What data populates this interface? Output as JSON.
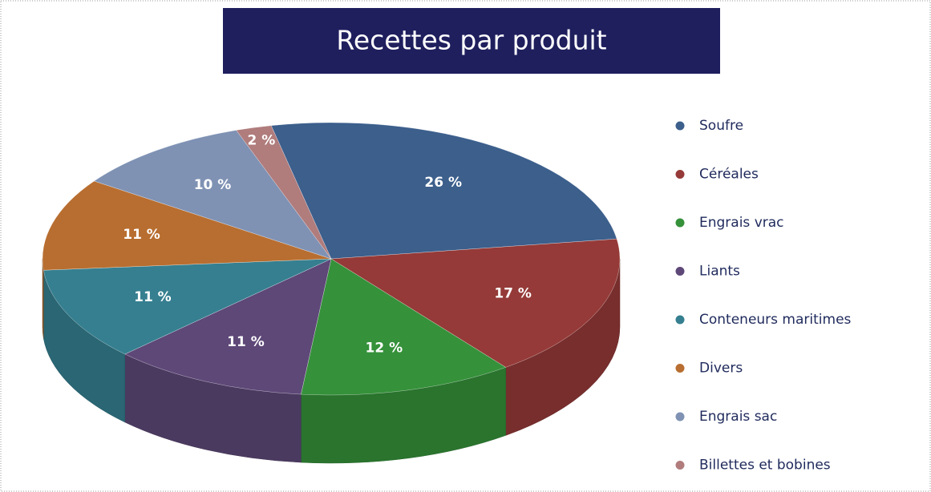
{
  "chart_data": {
    "type": "pie",
    "title": "Recettes par produit",
    "categories": [
      "Soufre",
      "Céréales",
      "Engrais vrac",
      "Liants",
      "Conteneurs maritimes",
      "Divers",
      "Engrais sac",
      "Billettes et bobines"
    ],
    "values": [
      26,
      17,
      12,
      11,
      11,
      11,
      10,
      2
    ],
    "value_labels": [
      "26 %",
      "17 %",
      "12 %",
      "11 %",
      "11 %",
      "11 %",
      "10 %",
      "2 %"
    ],
    "colors": [
      "#3c5f8c",
      "#953a38",
      "#35913a",
      "#5e4878",
      "#357f90",
      "#b86e30",
      "#7f92b4",
      "#b07c7c"
    ],
    "legend": "right"
  }
}
